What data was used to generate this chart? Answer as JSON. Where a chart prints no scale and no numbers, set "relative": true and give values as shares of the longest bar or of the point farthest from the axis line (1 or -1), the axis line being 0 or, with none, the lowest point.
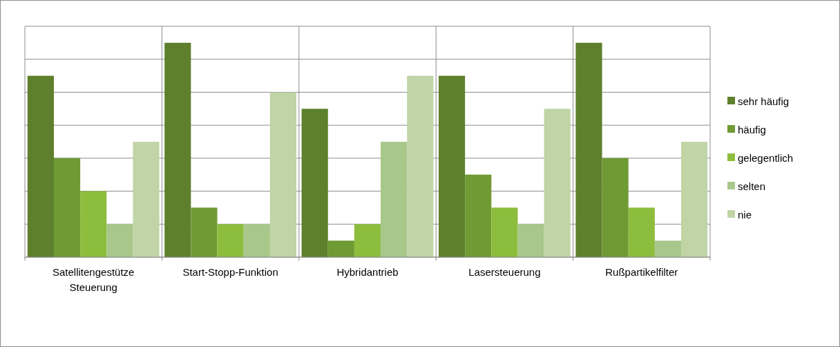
{
  "chart_data": {
    "type": "bar",
    "relative": true,
    "grid": true,
    "legend": "right",
    "categories": [
      "Satellitengestütze Steuerung",
      "Start-Stopp-Funktion",
      "Hybridantrieb",
      "Lasersteuerung",
      "Rußpartikelfilter"
    ],
    "series": [
      {
        "name": "sehr häufig",
        "color": "#5e7f2c",
        "values": [
          0.846,
          1,
          0.692,
          0.846,
          1
        ]
      },
      {
        "name": "häufig",
        "color": "#6f9a34",
        "values": [
          0.462,
          0.231,
          0.077,
          0.385,
          0.462
        ]
      },
      {
        "name": "gelegentlich",
        "color": "#8dbd3c",
        "values": [
          0.308,
          0.154,
          0.154,
          0.231,
          0.231
        ]
      },
      {
        "name": "selten",
        "color": "#a8c78a",
        "values": [
          0.154,
          0.154,
          0.538,
          0.154,
          0.077
        ]
      },
      {
        "name": "nie",
        "color": "#c0d4a6",
        "values": [
          0.538,
          0.769,
          0.846,
          0.692,
          0.538
        ]
      }
    ]
  }
}
